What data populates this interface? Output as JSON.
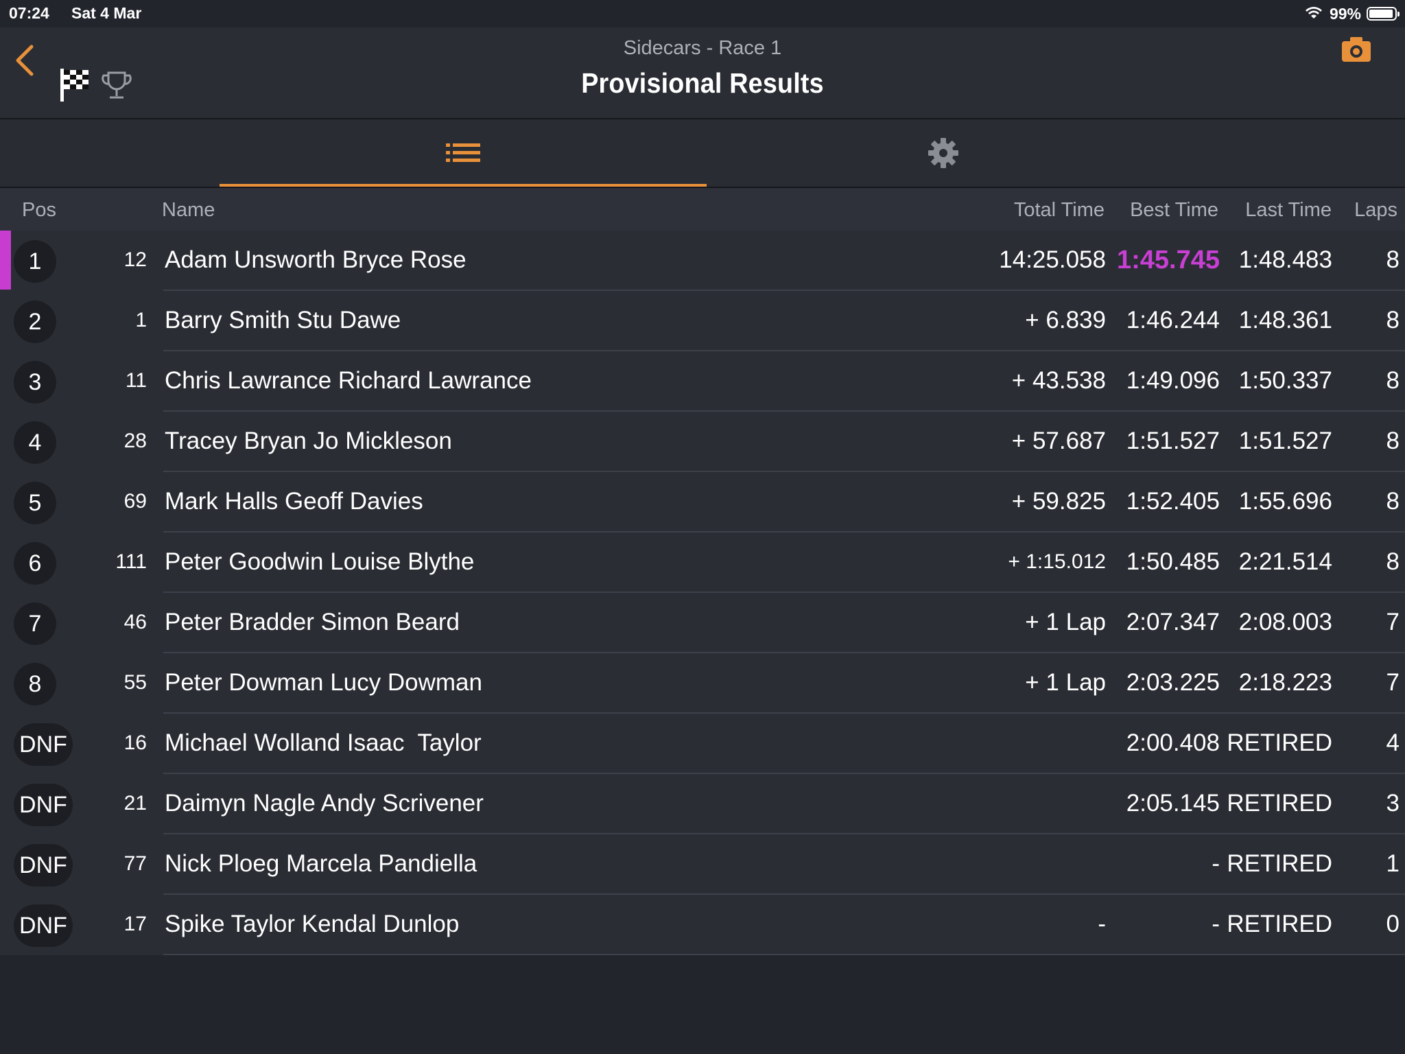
{
  "status_bar": {
    "time": "07:24",
    "date": "Sat 4 Mar",
    "battery": "99%"
  },
  "header": {
    "subtitle": "Sidecars - Race 1",
    "title": "Provisional Results"
  },
  "colors": {
    "accent": "#e8913a",
    "fastest_lap": "#c83fd3",
    "background": "#22252c"
  },
  "columns": {
    "pos": "Pos",
    "name": "Name",
    "total": "Total Time",
    "best": "Best Time",
    "last": "Last Time",
    "laps": "Laps"
  },
  "results": [
    {
      "pos": "1",
      "number": "12",
      "name": "Adam Unsworth Bryce Rose",
      "total": "14:25.058",
      "best": "1:45.745",
      "last": "1:48.483",
      "laps": "8"
    },
    {
      "pos": "2",
      "number": "1",
      "name": "Barry Smith Stu Dawe",
      "total": "+ 6.839",
      "best": "1:46.244",
      "last": "1:48.361",
      "laps": "8"
    },
    {
      "pos": "3",
      "number": "11",
      "name": "Chris Lawrance Richard Lawrance",
      "total": "+ 43.538",
      "best": "1:49.096",
      "last": "1:50.337",
      "laps": "8"
    },
    {
      "pos": "4",
      "number": "28",
      "name": "Tracey Bryan Jo Mickleson",
      "total": "+ 57.687",
      "best": "1:51.527",
      "last": "1:51.527",
      "laps": "8"
    },
    {
      "pos": "5",
      "number": "69",
      "name": "Mark Halls Geoff Davies",
      "total": "+ 59.825",
      "best": "1:52.405",
      "last": "1:55.696",
      "laps": "8"
    },
    {
      "pos": "6",
      "number": "111",
      "name": "Peter Goodwin Louise Blythe",
      "total": "+ 1:15.012",
      "best": "1:50.485",
      "last": "2:21.514",
      "laps": "8"
    },
    {
      "pos": "7",
      "number": "46",
      "name": "Peter Bradder Simon Beard",
      "total": "+ 1 Lap",
      "best": "2:07.347",
      "last": "2:08.003",
      "laps": "7"
    },
    {
      "pos": "8",
      "number": "55",
      "name": "Peter Dowman Lucy Dowman",
      "total": "+ 1 Lap",
      "best": "2:03.225",
      "last": "2:18.223",
      "laps": "7"
    },
    {
      "pos": "DNF",
      "number": "16",
      "name": "Michael Wolland Isaac  Taylor",
      "total": "",
      "best": "2:00.408",
      "last": "RETIRED",
      "laps": "4"
    },
    {
      "pos": "DNF",
      "number": "21",
      "name": "Daimyn Nagle Andy Scrivener",
      "total": "",
      "best": "2:05.145",
      "last": "RETIRED",
      "laps": "3"
    },
    {
      "pos": "DNF",
      "number": "77",
      "name": "Nick Ploeg Marcela Pandiella",
      "total": "",
      "best": "-",
      "last": "RETIRED",
      "laps": "1"
    },
    {
      "pos": "DNF",
      "number": "17",
      "name": "Spike Taylor Kendal Dunlop",
      "total": "-",
      "best": "-",
      "last": "RETIRED",
      "laps": "0"
    }
  ]
}
